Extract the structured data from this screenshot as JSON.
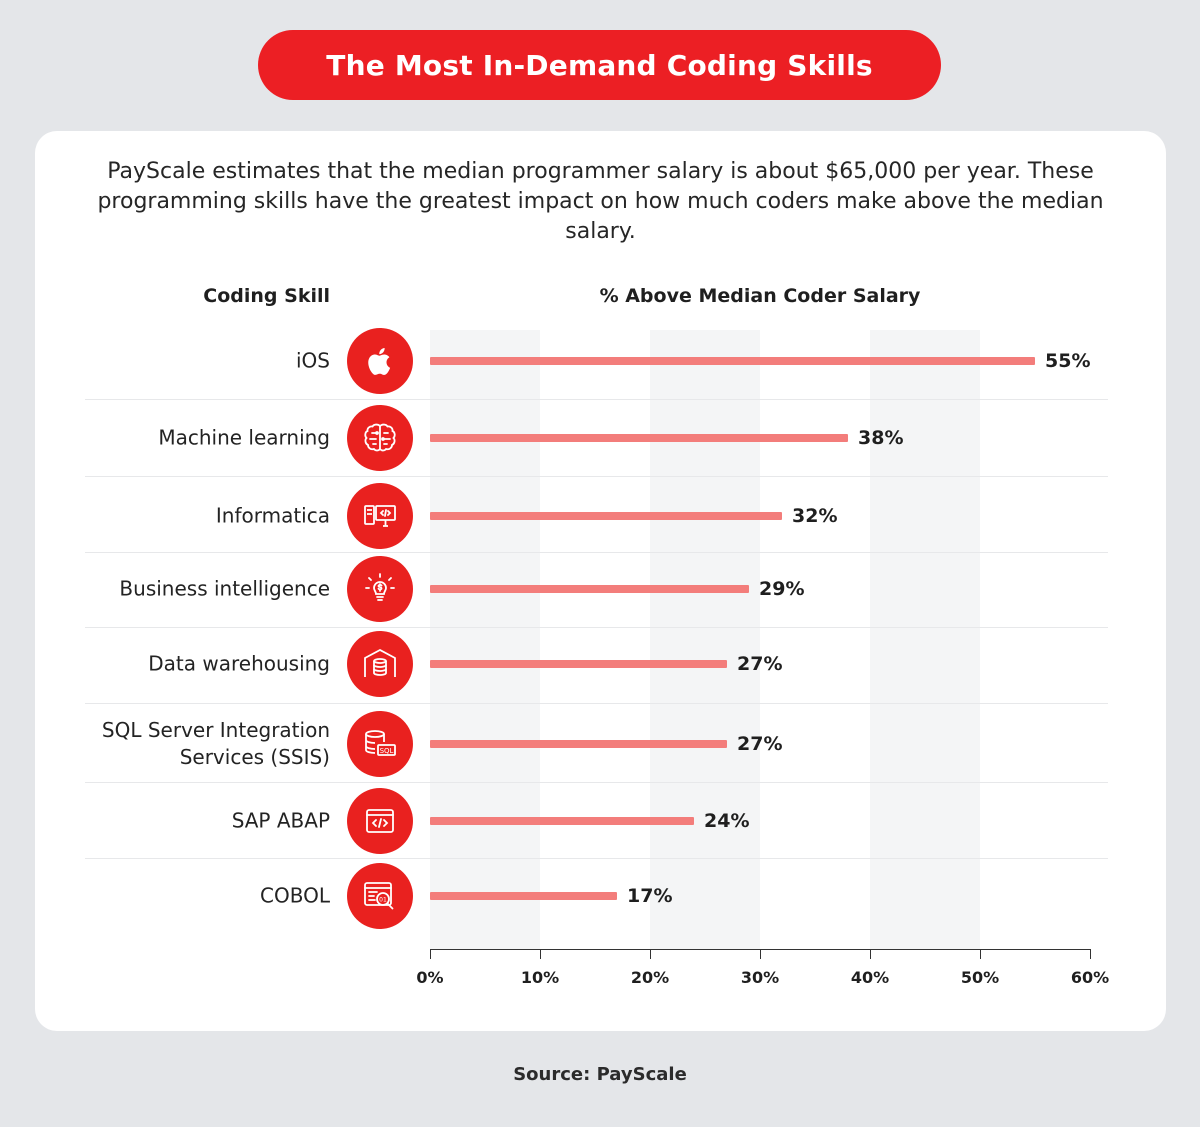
{
  "title": "The Most In-Demand Coding Skills",
  "intro": "PayScale estimates that the median programmer salary is about $65,000 per year. These programming skills have the greatest impact on how much coders make above the median salary.",
  "source": "Source: PayScale",
  "colors": {
    "accent": "#ec1f24",
    "bar": "#f37d7b",
    "background": "#e4e6e9"
  },
  "chart_data": {
    "type": "bar",
    "orientation": "horizontal",
    "column_headers": {
      "skill": "Coding Skill",
      "value": "% Above Median Coder Salary"
    },
    "categories": [
      "iOS",
      "Machine learning",
      "Informatica",
      "Business intelligence",
      "Data warehousing",
      "SQL Server Integration Services (SSIS)",
      "SAP ABAP",
      "COBOL"
    ],
    "values": [
      55,
      38,
      32,
      29,
      27,
      27,
      24,
      17
    ],
    "value_labels": [
      "55%",
      "38%",
      "32%",
      "29%",
      "27%",
      "27%",
      "24%",
      "17%"
    ],
    "icons": [
      "apple-icon",
      "brain-icon",
      "computer-code-icon",
      "lightbulb-dollar-icon",
      "warehouse-database-icon",
      "sql-database-icon",
      "code-window-icon",
      "binary-search-icon"
    ],
    "xlim": [
      0,
      60
    ],
    "x_ticks": [
      0,
      10,
      20,
      30,
      40,
      50,
      60
    ],
    "x_tick_labels": [
      "0%",
      "10%",
      "20%",
      "30%",
      "40%",
      "50%",
      "60%"
    ],
    "grid": "alternating vertical bands"
  }
}
